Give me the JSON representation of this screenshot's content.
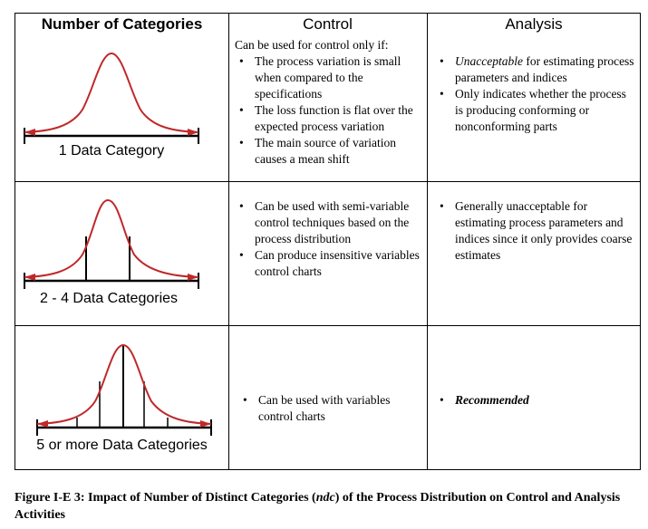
{
  "table": {
    "headers": {
      "categories": "Number of Categories",
      "control": "Control",
      "analysis": "Analysis"
    },
    "rows": [
      {
        "curve_label": "1 Data Category",
        "control_intro": "Can be used for control only if:",
        "control_items": [
          "The process variation is small when compared to the specifications",
          "The loss function is flat over the expected process variation",
          "The main source of variation causes a mean shift"
        ],
        "analysis_items": [
          {
            "emph": "Unacceptable",
            "rest": " for estimating process parameters and indices"
          },
          {
            "emph": "",
            "rest": "Only indicates whether the process is producing conforming or nonconforming parts"
          }
        ]
      },
      {
        "curve_label": "2 - 4 Data Categories",
        "control_items": [
          "Can be used with semi-variable control techniques based on the process distribution",
          "Can produce insensitive variables control charts"
        ],
        "analysis_items": [
          {
            "emph": "",
            "rest": "Generally unacceptable for estimating process parameters and indices since it only provides coarse estimates"
          }
        ]
      },
      {
        "curve_label": "5 or more Data Categories",
        "control_items": [
          "Can be used with variables control charts"
        ],
        "analysis_items": [
          {
            "emph": "Recommended",
            "rest": ""
          }
        ]
      }
    ]
  },
  "caption": {
    "prefix": "Figure I-E 3:  Impact of Number of Distinct Categories (",
    "emph": "ndc",
    "suffix": ") of the Process Distribution on Control and Analysis Activities"
  },
  "colors": {
    "curve": "#c0282a",
    "line": "#000000"
  },
  "bullet_glyph": "•"
}
